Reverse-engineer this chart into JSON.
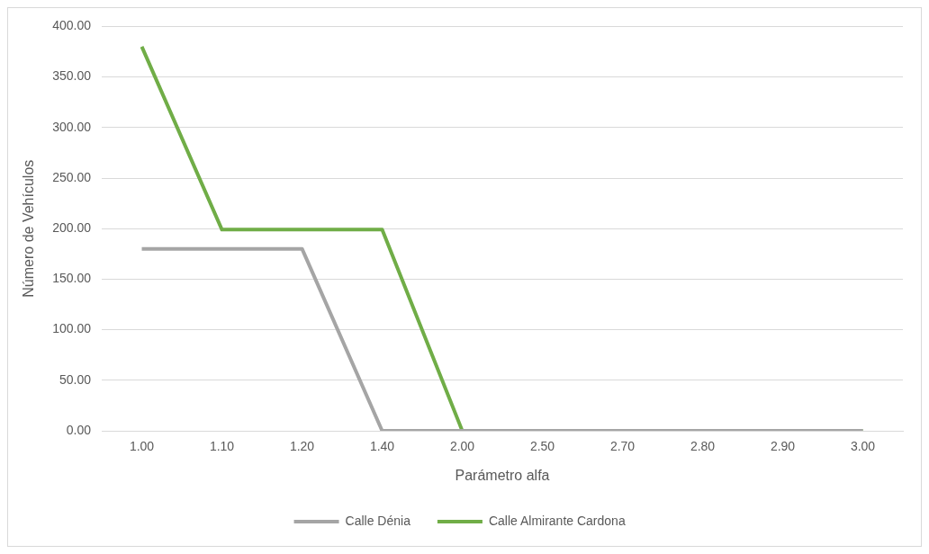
{
  "chart_data": {
    "type": "line",
    "xlabel": "Parámetro alfa",
    "ylabel": "Número de Vehículos",
    "categories": [
      "1.00",
      "1.10",
      "1.20",
      "1.40",
      "2.00",
      "2.50",
      "2.70",
      "2.80",
      "2.90",
      "3.00"
    ],
    "series": [
      {
        "name": "Calle Dénia",
        "color": "#a5a5a5",
        "values": [
          180,
          180,
          180,
          0,
          0,
          0,
          0,
          0,
          0,
          0
        ]
      },
      {
        "name": "Calle Almirante Cardona",
        "color": "#70ad47",
        "values": [
          380,
          199,
          199,
          199,
          0,
          0,
          0,
          0,
          0,
          0
        ]
      }
    ],
    "ylim": [
      0,
      400
    ],
    "yticks": [
      {
        "value": 0,
        "label": "0.00"
      },
      {
        "value": 50,
        "label": "50.00"
      },
      {
        "value": 100,
        "label": "100.00"
      },
      {
        "value": 150,
        "label": "150.00"
      },
      {
        "value": 200,
        "label": "200.00"
      },
      {
        "value": 250,
        "label": "250.00"
      },
      {
        "value": 300,
        "label": "300.00"
      },
      {
        "value": 350,
        "label": "350.00"
      },
      {
        "value": 400,
        "label": "400.00"
      }
    ],
    "grid": "y",
    "legend": "bottom",
    "marker": "none",
    "line_style": "solid"
  }
}
